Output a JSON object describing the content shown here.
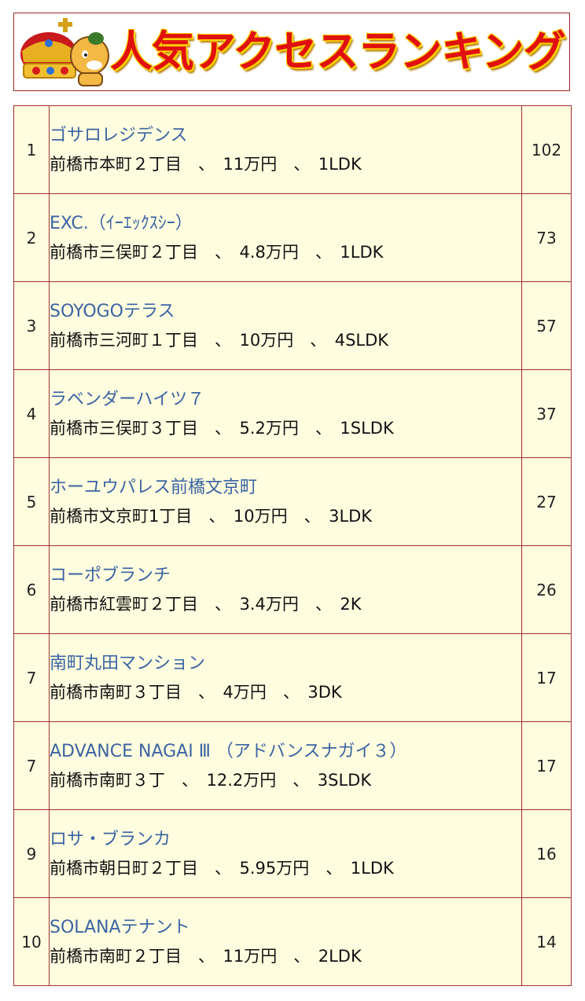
{
  "banner": {
    "title": "人気アクセスランキング"
  },
  "ranking": [
    {
      "rank": "1",
      "name": "ゴサロレジデンス",
      "detail": "前橋市本町２丁目　、　11万円　、　1LDK",
      "count": "102"
    },
    {
      "rank": "2",
      "name": "EXC.（ｲｰｴｯｸｽｼｰ）",
      "detail": "前橋市三俣町２丁目　、　4.8万円　、　1LDK",
      "count": "73"
    },
    {
      "rank": "3",
      "name": "SOYOGOテラス",
      "detail": "前橋市三河町１丁目　、　10万円　、　4SLDK",
      "count": "57"
    },
    {
      "rank": "4",
      "name": "ラベンダーハイツ７",
      "detail": "前橋市三俣町３丁目　、　5.2万円　、　1SLDK",
      "count": "37"
    },
    {
      "rank": "5",
      "name": "ホーユウパレス前橋文京町",
      "detail": "前橋市文京町1丁目　、　10万円　、　3LDK",
      "count": "27"
    },
    {
      "rank": "6",
      "name": "コーポブランチ",
      "detail": "前橋市紅雲町２丁目　、　3.4万円　、　2K",
      "count": "26"
    },
    {
      "rank": "7",
      "name": "南町丸田マンション",
      "detail": "前橋市南町３丁目　、　4万円　、　3DK",
      "count": "17"
    },
    {
      "rank": "7",
      "name": "ADVANCE NAGAI Ⅲ （アドバンスナガイ３）",
      "detail": "前橋市南町３丁　、　12.2万円　、　3SLDK",
      "count": "17"
    },
    {
      "rank": "9",
      "name": "ロサ・ブランカ",
      "detail": "前橋市朝日町２丁目　、　5.95万円　、　1LDK",
      "count": "16"
    },
    {
      "rank": "10",
      "name": "SOLANAテナント",
      "detail": "前橋市南町２丁目　、　11万円　、　2LDK",
      "count": "14"
    }
  ]
}
